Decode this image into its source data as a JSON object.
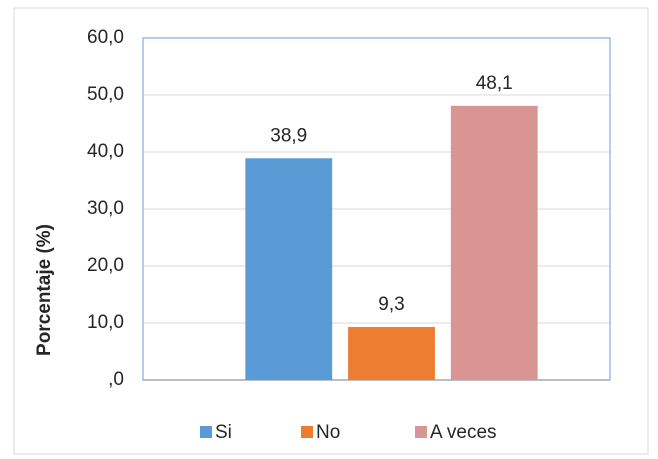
{
  "chart_data": {
    "type": "bar",
    "y_label": "Porcentaje (%)",
    "categories": [
      null
    ],
    "series": [
      {
        "name": "Si",
        "color": "#5b9bd5",
        "values": [
          38.9
        ],
        "value_labels": [
          "38,9"
        ]
      },
      {
        "name": "No",
        "color": "#ed7d31",
        "values": [
          9.3
        ],
        "value_labels": [
          "9,3"
        ]
      },
      {
        "name": "A veces",
        "color": "#d99594",
        "values": [
          48.1
        ],
        "value_labels": [
          "48,1"
        ]
      }
    ],
    "ylim": [
      0,
      60
    ],
    "yticks": [
      {
        "value": 0,
        "label": ",0"
      },
      {
        "value": 10,
        "label": "10,0"
      },
      {
        "value": 20,
        "label": "20,0"
      },
      {
        "value": 30,
        "label": "30,0"
      },
      {
        "value": 40,
        "label": "40,0"
      },
      {
        "value": 50,
        "label": "50,0"
      },
      {
        "value": 60,
        "label": "60,0"
      }
    ],
    "grid": true,
    "legend": "bottom"
  }
}
